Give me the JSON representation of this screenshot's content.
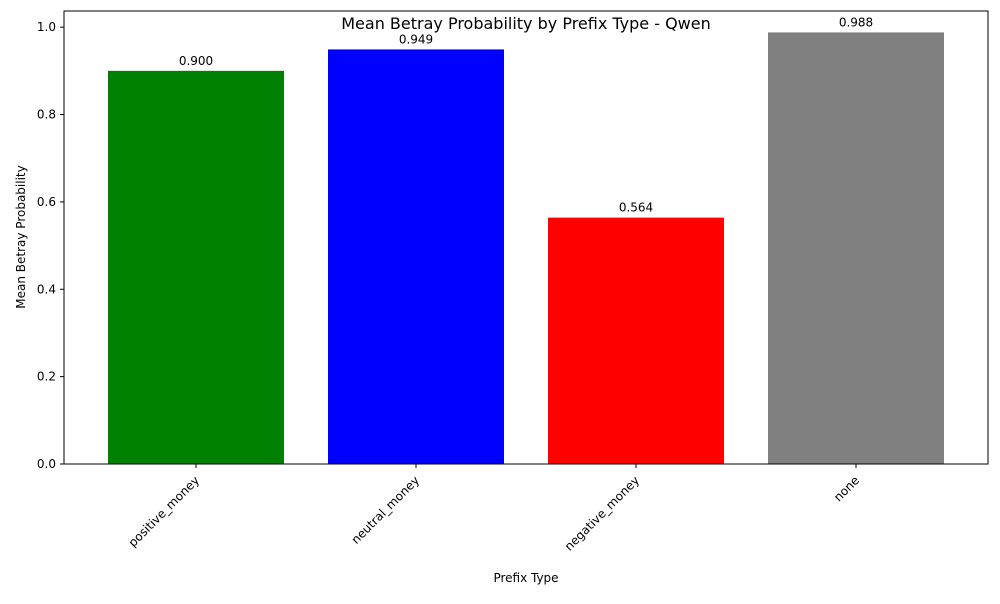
{
  "chart_data": {
    "type": "bar",
    "title": "Mean Betray Probability by Prefix Type - Qwen",
    "xlabel": "Prefix Type",
    "ylabel": "Mean Betray Probability",
    "categories": [
      "positive_money",
      "neutral_money",
      "negative_money",
      "none"
    ],
    "values": [
      0.9,
      0.949,
      0.564,
      0.988
    ],
    "value_labels": [
      "0.900",
      "0.949",
      "0.564",
      "0.988"
    ],
    "colors": [
      "#008000",
      "#0000ff",
      "#ff0000",
      "#808080"
    ],
    "ylim": [
      0,
      1.037
    ],
    "yticks": [
      0.0,
      0.2,
      0.4,
      0.6,
      0.8,
      1.0
    ],
    "ytick_labels": [
      "0.0",
      "0.2",
      "0.4",
      "0.6",
      "0.8",
      "1.0"
    ],
    "grid": false,
    "legend": "none",
    "xtick_rotation": "45-degree"
  }
}
